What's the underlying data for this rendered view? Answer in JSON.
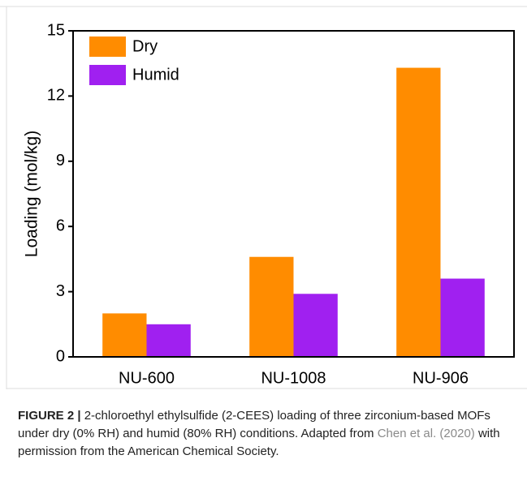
{
  "chart_data": {
    "type": "bar",
    "y_label": "Loading (mol/kg)",
    "categories": [
      "NU-600",
      "NU-1008",
      "NU-906"
    ],
    "series": [
      {
        "name": "Dry",
        "color": "#ff8c00",
        "values": [
          2.0,
          4.6,
          13.3
        ]
      },
      {
        "name": "Humid",
        "color": "#a020f0",
        "values": [
          1.5,
          2.9,
          3.6
        ]
      }
    ],
    "ylim": [
      0,
      15
    ],
    "yticks": [
      0,
      3,
      6,
      9,
      12,
      15
    ],
    "grid": false,
    "legend": "top-left"
  },
  "caption": {
    "label": "FIGURE 2 |",
    "text_before": "2-chloroethyl ethylsulfide (2-CEES) loading of three zirconium-based MOFs under dry (0% RH) and humid (80% RH) conditions. Adapted from",
    "link": "Chen et al. (2020)",
    "text_after": "with permission from the American Chemical Society."
  }
}
